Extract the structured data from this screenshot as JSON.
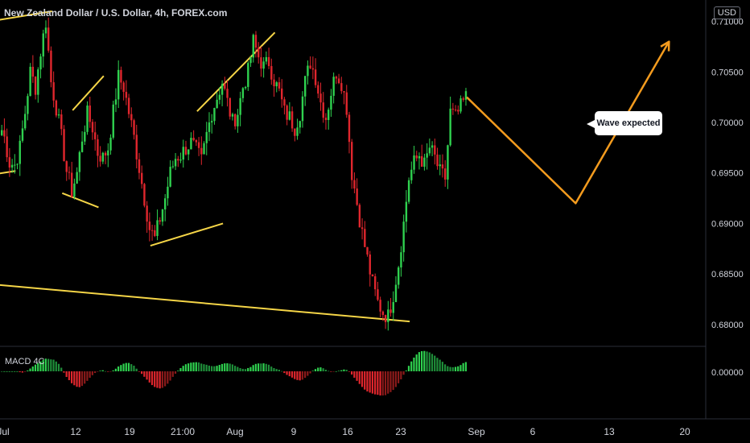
{
  "header": {
    "title": "New Zealand Dollar / U.S. Dollar, 4h, FOREX.com",
    "currency_button": "USD",
    "indicator_label": "MACD 4C"
  },
  "annotation": {
    "text": "Wave expected"
  },
  "colors": {
    "up": "#26a69a",
    "up_bright": "#2fd14f",
    "down": "#e0262d",
    "pattern_line": "#f5d547",
    "projection": "#f39b1e",
    "axis_text": "#d1d4dc",
    "grid": "#1e222d"
  },
  "chart_data": {
    "type": "candlestick",
    "symbol": "NZDUSD",
    "timeframe": "4h",
    "ylim": [
      0.678,
      0.711
    ],
    "y_ticks": [
      "0.71000",
      "0.70500",
      "0.70000",
      "0.69500",
      "0.69000",
      "0.68500",
      "0.68000"
    ],
    "y_tick_values": [
      0.71,
      0.705,
      0.7,
      0.695,
      0.69,
      0.685,
      0.68
    ],
    "x_labels": [
      "Jul",
      "12",
      "19",
      "21:00",
      "Aug",
      "9",
      "16",
      "23",
      "Sep",
      "6",
      "13",
      "20"
    ],
    "path_close": [
      0.7,
      0.6985,
      0.696,
      0.6958,
      0.6975,
      0.701,
      0.705,
      0.7035,
      0.707,
      0.71,
      0.704,
      0.7015,
      0.6985,
      0.6952,
      0.6932,
      0.695,
      0.6985,
      0.7008,
      0.6995,
      0.697,
      0.6965,
      0.6975,
      0.701,
      0.7045,
      0.7035,
      0.701,
      0.6985,
      0.6955,
      0.6925,
      0.6895,
      0.6885,
      0.6905,
      0.6925,
      0.695,
      0.6965,
      0.6968,
      0.6975,
      0.698,
      0.6972,
      0.6962,
      0.6988,
      0.701,
      0.7025,
      0.704,
      0.702,
      0.7,
      0.701,
      0.7035,
      0.705,
      0.708,
      0.7065,
      0.7055,
      0.706,
      0.7042,
      0.703,
      0.701,
      0.7005,
      0.6995,
      0.701,
      0.704,
      0.706,
      0.7045,
      0.702,
      0.7005,
      0.703,
      0.705,
      0.704,
      0.7015,
      0.695,
      0.692,
      0.689,
      0.6865,
      0.684,
      0.6822,
      0.6812,
      0.6808,
      0.683,
      0.686,
      0.69,
      0.6945,
      0.696,
      0.6968,
      0.6958,
      0.6975,
      0.6965,
      0.695,
      0.6945,
      0.701,
      0.7005,
      0.7015,
      0.7025
    ],
    "projection_points": [
      {
        "bar": 90,
        "price": 0.7025
      },
      {
        "bar": 111,
        "price": 0.692
      },
      {
        "bar": 129,
        "price": 0.708
      }
    ],
    "pattern_lines": [
      [
        {
          "bar": -2,
          "price": 0.71
        },
        {
          "bar": 10,
          "price": 0.711
        }
      ],
      [
        {
          "bar": -2,
          "price": 0.6948
        },
        {
          "bar": 3,
          "price": 0.6952
        }
      ],
      [
        {
          "bar": 12,
          "price": 0.693
        },
        {
          "bar": 19,
          "price": 0.6916
        }
      ],
      [
        {
          "bar": 14,
          "price": 0.7012
        },
        {
          "bar": 20,
          "price": 0.7046
        }
      ],
      [
        {
          "bar": 29,
          "price": 0.6878
        },
        {
          "bar": 43,
          "price": 0.69
        }
      ],
      [
        {
          "bar": 38,
          "price": 0.7011
        },
        {
          "bar": 53,
          "price": 0.7089
        }
      ],
      [
        {
          "bar": -2,
          "price": 0.684
        },
        {
          "bar": 79,
          "price": 0.6803
        }
      ]
    ],
    "macd": {
      "name": "MACD 4C",
      "zero_label": "0.00000"
    }
  }
}
